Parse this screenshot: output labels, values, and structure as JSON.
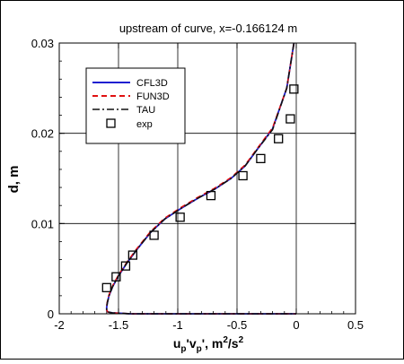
{
  "chart_data": {
    "type": "line",
    "title": "upstream of curve, x=-0.166124 m",
    "xlabel_parts": {
      "u": "u",
      "p1": "p",
      "prime1": "'v",
      "p2": "p",
      "prime2": "', m",
      "two1": "2",
      "slash": "/s",
      "two2": "2"
    },
    "ylabel": "d, m",
    "xlim": [
      -2,
      0.5
    ],
    "ylim": [
      0,
      0.03
    ],
    "xticks": [
      -2,
      -1.5,
      -1,
      -0.5,
      0,
      0.5
    ],
    "xtick_labels": [
      "-2",
      "-1.5",
      "-1",
      "-0.5",
      "0",
      "0.5"
    ],
    "yticks": [
      0,
      0.01,
      0.02,
      0.03
    ],
    "ytick_labels": [
      "0",
      "0.01",
      "0.02",
      "0.03"
    ],
    "grid": true,
    "legend_placement": "top-left",
    "series": [
      {
        "name": "CFL3D",
        "color": "#1f1fd0",
        "style": "solid",
        "x": [
          -0.02,
          -0.08,
          -0.2,
          -0.33,
          -0.43,
          -0.55,
          -0.69,
          -0.83,
          -0.97,
          -1.11,
          -1.23,
          -1.34,
          -1.43,
          -1.5,
          -1.55,
          -1.58,
          -1.595,
          -1.6,
          -1.6,
          -1.59,
          -1.55,
          -1.4,
          -1.2,
          -1.0,
          -0.5,
          0.0
        ],
        "y": [
          0.03,
          0.025,
          0.0205,
          0.0182,
          0.0164,
          0.015,
          0.0138,
          0.0128,
          0.0117,
          0.0105,
          0.009,
          0.0072,
          0.0056,
          0.0042,
          0.003,
          0.002,
          0.0012,
          0.0007,
          0.0004,
          0.0002,
          0.0001,
          0.0,
          0.0,
          0.0,
          0.0,
          0.0
        ]
      },
      {
        "name": "FUN3D",
        "color": "#e01010",
        "style": "dashed",
        "x": [
          -0.02,
          -0.08,
          -0.2,
          -0.33,
          -0.43,
          -0.55,
          -0.69,
          -0.83,
          -0.97,
          -1.11,
          -1.23,
          -1.34,
          -1.43,
          -1.5,
          -1.55,
          -1.58,
          -1.595,
          -1.6,
          -1.6,
          -1.59,
          -1.55,
          -1.4,
          -1.2,
          -1.0,
          -0.5,
          0.0
        ],
        "y": [
          0.03,
          0.025,
          0.0206,
          0.0183,
          0.0165,
          0.0151,
          0.0139,
          0.0129,
          0.0118,
          0.0106,
          0.0091,
          0.0073,
          0.0057,
          0.0043,
          0.0031,
          0.0021,
          0.0013,
          0.0008,
          0.0004,
          0.0002,
          0.0001,
          0.0,
          0.0,
          0.0,
          0.0,
          0.0
        ]
      },
      {
        "name": "TAU",
        "color": "#111111",
        "style": "dashdot",
        "x": [
          -0.02,
          -0.08,
          -0.2,
          -0.33,
          -0.43,
          -0.55,
          -0.69,
          -0.83,
          -0.97,
          -1.11,
          -1.23,
          -1.34,
          -1.43,
          -1.5,
          -1.55,
          -1.58,
          -1.595,
          -1.6,
          -1.6,
          -1.59,
          -1.55,
          -1.4,
          -1.2,
          -1.0,
          -0.5,
          0.0
        ],
        "y": [
          0.03,
          0.025,
          0.0204,
          0.0182,
          0.0164,
          0.015,
          0.0138,
          0.0128,
          0.0117,
          0.0105,
          0.009,
          0.0072,
          0.0056,
          0.0042,
          0.003,
          0.002,
          0.0012,
          0.0007,
          0.0004,
          0.0002,
          0.0001,
          0.0,
          0.0,
          0.0,
          0.0,
          0.0
        ]
      },
      {
        "name": "exp",
        "color": "#000000",
        "style": "square-markers",
        "x": [
          -1.6,
          -1.52,
          -1.44,
          -1.38,
          -1.2,
          -0.98,
          -0.72,
          -0.45,
          -0.3,
          -0.15,
          -0.05,
          -0.02
        ],
        "y": [
          0.0029,
          0.0041,
          0.0053,
          0.0065,
          0.0087,
          0.0107,
          0.0131,
          0.0153,
          0.0172,
          0.0194,
          0.0216,
          0.0249
        ]
      }
    ]
  }
}
